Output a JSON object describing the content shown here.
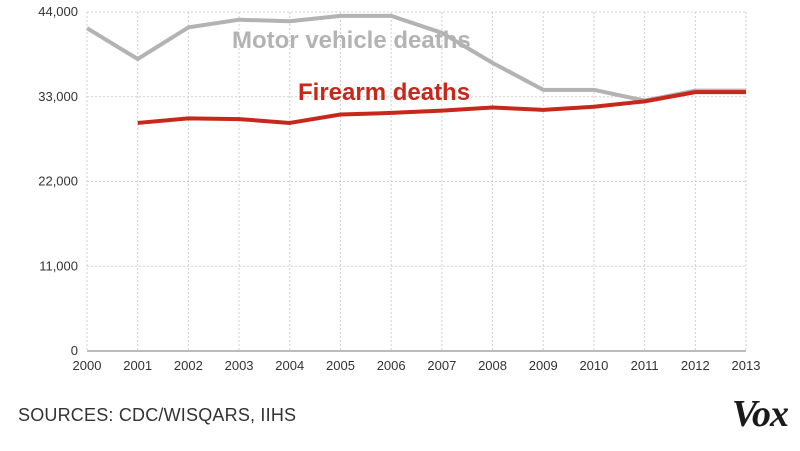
{
  "chart_data": {
    "type": "line",
    "x": [
      2000,
      2001,
      2002,
      2003,
      2004,
      2005,
      2006,
      2007,
      2008,
      2009,
      2010,
      2011,
      2012,
      2013
    ],
    "series": [
      {
        "name": "Motor vehicle deaths",
        "color": "#b3b3b3",
        "values": [
          41900,
          37900,
          42000,
          43000,
          42800,
          43500,
          43500,
          41300,
          37400,
          33900,
          33900,
          32500,
          33800,
          33800
        ]
      },
      {
        "name": "Firearm deaths",
        "color": "#c7281b",
        "values": [
          null,
          29600,
          30200,
          30100,
          29600,
          30700,
          30900,
          31200,
          31600,
          31300,
          31700,
          32400,
          33600,
          33600
        ]
      }
    ],
    "ylim": [
      0,
      44000
    ],
    "yticks": [
      "0",
      "11,000",
      "22,000",
      "33,000",
      "44,000"
    ],
    "ytick_values": [
      0,
      11000,
      22000,
      33000,
      44000
    ],
    "xticks": [
      "2000",
      "2001",
      "2002",
      "2003",
      "2004",
      "2005",
      "2006",
      "2007",
      "2008",
      "2009",
      "2010",
      "2011",
      "2012",
      "2013"
    ],
    "grid": true
  },
  "source_text": "SOURCES: CDC/WISQARS, IIHS",
  "logo_text": "Vox"
}
